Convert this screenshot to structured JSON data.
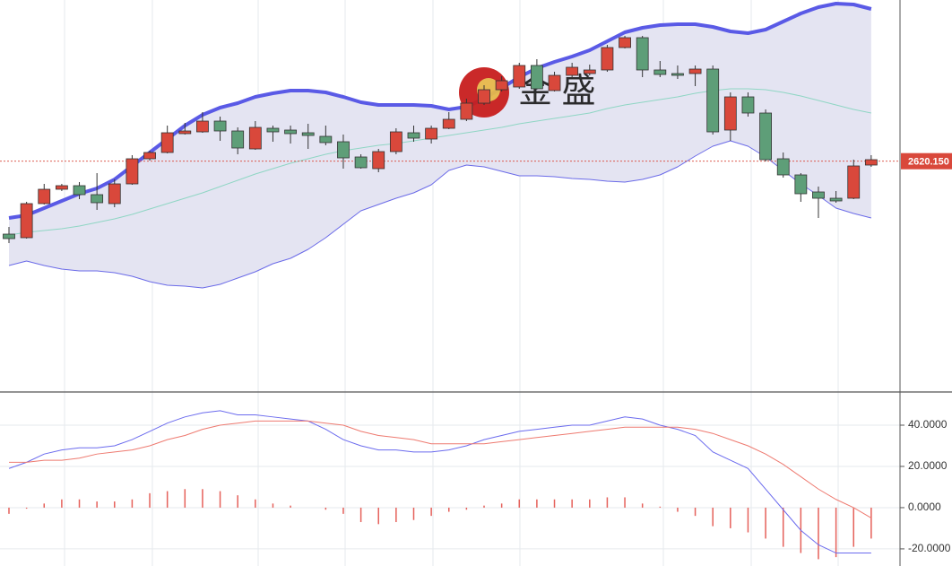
{
  "chart_data": [
    {
      "type": "candlestick",
      "watermark": "金 盛",
      "up_color": "#d9483b",
      "down_color": "#5e9e78",
      "ylim": [
        2491.5,
        2710
      ],
      "last_price": {
        "value": 2620.15,
        "label": "2620.150"
      },
      "last_price_color": "#d9483b",
      "band_fill": "#e4e4f2",
      "open": [
        2579.5,
        2577.5,
        2596.5,
        2604.5,
        2606.5,
        2601.5,
        2596.5,
        2607.5,
        2621.5,
        2625,
        2635.5,
        2636.5,
        2642.5,
        2637,
        2627,
        2638.5,
        2637.5,
        2636,
        2634,
        2631,
        2622.5,
        2616,
        2625.5,
        2636,
        2632.5,
        2638.5,
        2643.5,
        2652.5,
        2660,
        2661.5,
        2673.5,
        2659.5,
        2668,
        2669,
        2671,
        2683.5,
        2689,
        2671,
        2669,
        2669,
        2671.5,
        2637.5,
        2656,
        2647,
        2621.5,
        2612.5,
        2603,
        2599.5,
        2599.5,
        2618
      ],
      "high": [
        2583.5,
        2597.5,
        2607.5,
        2607.5,
        2608.5,
        2613.5,
        2610,
        2623.5,
        2626,
        2640,
        2641.5,
        2647.5,
        2645,
        2639,
        2642.5,
        2640,
        2640,
        2641,
        2640,
        2635,
        2624,
        2627,
        2638.5,
        2640,
        2640,
        2647.5,
        2655,
        2662.5,
        2667.5,
        2675,
        2677,
        2670,
        2675,
        2674,
        2685,
        2690,
        2690,
        2676,
        2673.5,
        2673.5,
        2673.5,
        2658.5,
        2658.5,
        2649,
        2625,
        2613.5,
        2606,
        2603.5,
        2621,
        2623.5
      ],
      "low": [
        2574.5,
        2577,
        2596,
        2603.5,
        2599,
        2593,
        2594.5,
        2607,
        2620.5,
        2624.5,
        2635,
        2636,
        2631.5,
        2624,
        2626.5,
        2631,
        2630,
        2627,
        2629,
        2616,
        2616,
        2614,
        2624,
        2631,
        2630,
        2638,
        2642.5,
        2651.5,
        2659,
        2660.5,
        2660,
        2659,
        2666.5,
        2668,
        2670,
        2683,
        2667,
        2667,
        2666,
        2662,
        2635,
        2631.5,
        2645,
        2620,
        2611,
        2597.5,
        2588.5,
        2597,
        2599,
        2617
      ],
      "close": [
        2577,
        2596.5,
        2604.5,
        2606.5,
        2601.5,
        2597,
        2607.5,
        2621.5,
        2625,
        2636,
        2637,
        2642.5,
        2637,
        2627.5,
        2639,
        2636.5,
        2635.5,
        2634.5,
        2630.5,
        2622,
        2616.5,
        2625.5,
        2636.5,
        2633,
        2638.5,
        2643.5,
        2652.5,
        2660,
        2665,
        2673.5,
        2660.5,
        2668,
        2672.5,
        2671,
        2683.5,
        2689,
        2671,
        2668.5,
        2668,
        2671.5,
        2636.5,
        2656,
        2647,
        2621,
        2612.5,
        2602,
        2599.5,
        2598,
        2617.5,
        2621
      ],
      "series": [
        {
          "color": "#5a5ae6",
          "values": [
            2588.5,
            2590,
            2594,
            2598,
            2602,
            2605,
            2610,
            2617.5,
            2625,
            2632.5,
            2640,
            2646,
            2650,
            2652.5,
            2656,
            2658,
            2659.5,
            2659.5,
            2658.5,
            2656,
            2653,
            2651.5,
            2651.5,
            2651.5,
            2651,
            2649,
            2650.5,
            2655,
            2661,
            2667,
            2672,
            2675.5,
            2678.5,
            2682,
            2687,
            2692,
            2694.5,
            2696,
            2696.5,
            2696.5,
            2695,
            2692.5,
            2691.5,
            2693.5,
            2698,
            2702.5,
            2706,
            2708,
            2707.5,
            2705
          ]
        },
        {
          "color": "#8fd6c4",
          "values": [
            2579,
            2580.5,
            2581.5,
            2582.5,
            2584,
            2586,
            2588,
            2590.5,
            2593.5,
            2596.5,
            2599.5,
            2602.5,
            2606,
            2609.5,
            2613,
            2616,
            2619,
            2621.5,
            2624,
            2626,
            2627.5,
            2629,
            2630,
            2631.5,
            2633,
            2634.5,
            2636,
            2637.5,
            2639,
            2641,
            2642.5,
            2644,
            2645.5,
            2647,
            2649.5,
            2651.5,
            2653,
            2654.5,
            2656,
            2658,
            2659.5,
            2660.5,
            2660.5,
            2660,
            2658.5,
            2656.5,
            2654,
            2651.5,
            2649,
            2647
          ]
        },
        {
          "color": "#6a6ae8",
          "values": [
            2562,
            2564.5,
            2562,
            2560,
            2559,
            2559,
            2558,
            2556,
            2553,
            2551,
            2550.5,
            2549.5,
            2551.5,
            2555,
            2558.5,
            2563,
            2566,
            2571,
            2577.5,
            2585,
            2592.5,
            2596,
            2599.5,
            2602.5,
            2607,
            2615,
            2618,
            2617,
            2614.5,
            2612,
            2612,
            2611.5,
            2610.5,
            2610,
            2609,
            2608.5,
            2610,
            2612.5,
            2617,
            2623,
            2628.5,
            2631.5,
            2628.5,
            2622.5,
            2615,
            2607.5,
            2601,
            2594,
            2591,
            2588.5
          ]
        }
      ]
    },
    {
      "type": "macd",
      "ylim": [
        -28.3,
        56.1
      ],
      "yticks": [
        {
          "value": 40,
          "label": "40.0000"
        },
        {
          "value": 20,
          "label": "20.0000"
        },
        {
          "value": 0,
          "label": "0.0000"
        },
        {
          "value": -20,
          "label": "-20.0000"
        }
      ],
      "grid": true,
      "histogram": {
        "color": "#e5605a",
        "values": [
          -3,
          -0.5,
          2,
          4,
          4,
          3,
          3,
          4,
          7,
          8,
          9,
          9,
          8,
          6,
          4,
          2,
          1,
          0,
          -1,
          -3,
          -7,
          -8,
          -7,
          -6,
          -4,
          -2,
          -1,
          1,
          2,
          4,
          4,
          4,
          4,
          4,
          5,
          5,
          2,
          0.5,
          -2,
          -4,
          -9,
          -10,
          -12,
          -15,
          -19,
          -22,
          -25,
          -24,
          -19,
          -15
        ]
      },
      "series": [
        {
          "color": "#6b6bee",
          "values": [
            19,
            22,
            26,
            28,
            29,
            29,
            30,
            33,
            37,
            41,
            44,
            46,
            47,
            45,
            45,
            44,
            43,
            42,
            38,
            33,
            30,
            28,
            28,
            27,
            27,
            28,
            30,
            33,
            35,
            37,
            38,
            39,
            40,
            40,
            42,
            44,
            43,
            40,
            38,
            35,
            27,
            23,
            19,
            9,
            -1,
            -11,
            -18,
            -22,
            -22,
            -22
          ]
        },
        {
          "color": "#ee7a70",
          "values": [
            22,
            22,
            23,
            23,
            24,
            26,
            27,
            28,
            30,
            33,
            35,
            38,
            40,
            41,
            42,
            42,
            42,
            42,
            41,
            40,
            37,
            35,
            34,
            33,
            31,
            31,
            31,
            31,
            32,
            33,
            34,
            35,
            36,
            37,
            38,
            39,
            39,
            39,
            39,
            38,
            36,
            33,
            30,
            26,
            21,
            15,
            9,
            4,
            0,
            -5
          ]
        }
      ]
    }
  ]
}
